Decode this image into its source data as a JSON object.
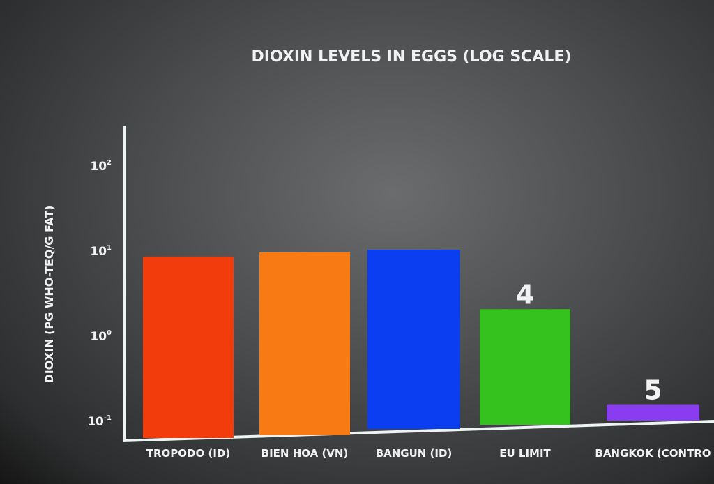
{
  "chart_data": {
    "type": "bar",
    "title": "DIOXIN LEVELS IN EGGS (LOG SCALE)",
    "xlabel": "",
    "ylabel": "DIOXIN (PG WHO-TEQ/G FAT)",
    "yscale": "log",
    "ylim": [
      0.063,
      100
    ],
    "yticks": [
      {
        "value": 100,
        "base": "10",
        "exp": "2"
      },
      {
        "value": 10,
        "base": "10",
        "exp": "1"
      },
      {
        "value": 1,
        "base": "10",
        "exp": "0"
      },
      {
        "value": 0.1,
        "base": "10",
        "exp": "-1"
      }
    ],
    "grid": false,
    "categories": [
      "TROPODO (ID)",
      "BIEN HOA (VN)",
      "BANGUN (ID)",
      "EU LIMIT",
      "BANGKOK (CONTRO"
    ],
    "values": [
      8.3,
      9.3,
      10,
      2.0,
      0.15
    ],
    "colors": [
      "#f23c0c",
      "#f77a14",
      "#0a3ef0",
      "#36c21e",
      "#8a3cf0"
    ],
    "annotations": [
      {
        "category": "EU LIMIT",
        "text": "4"
      },
      {
        "category": "BANGKOK (CONTRO",
        "text": "5"
      }
    ]
  }
}
